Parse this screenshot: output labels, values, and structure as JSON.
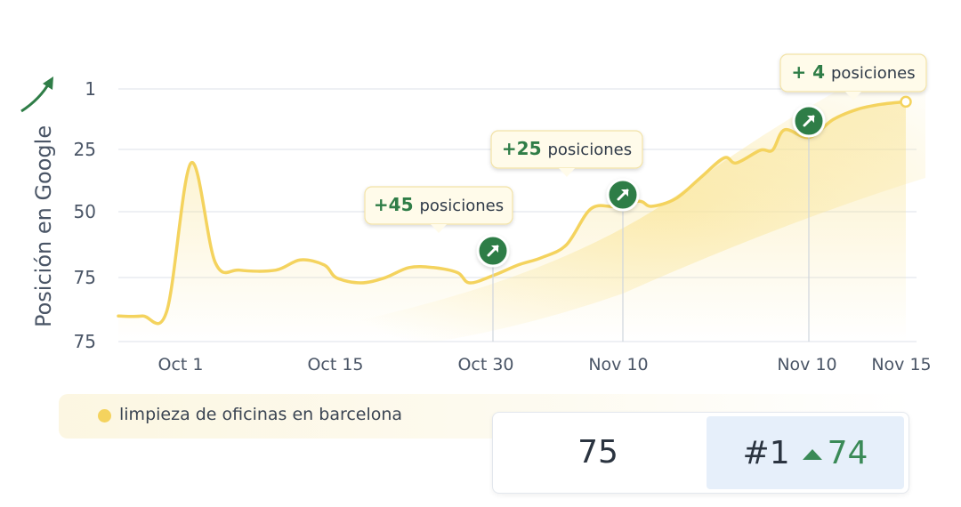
{
  "chart_data": {
    "type": "line",
    "ylabel": "Posición en Google",
    "yticks": [
      "1",
      "25",
      "50",
      "75",
      "75"
    ],
    "ylim": [
      1,
      100
    ],
    "y_inverted": true,
    "xticks": [
      "Oct 1",
      "Oct 15",
      "Oct 30",
      "Nov 10",
      "Nov 10",
      "Nov 15"
    ],
    "series": [
      {
        "name": "limpieza de oficinas en barcelona",
        "color": "#f4d35e",
        "points": [
          {
            "x": "Sep 25",
            "y": 90
          },
          {
            "x": "Sep 27",
            "y": 90
          },
          {
            "x": "Sep 29",
            "y": 88
          },
          {
            "x": "Oct 1",
            "y": 30
          },
          {
            "x": "Oct 3",
            "y": 69
          },
          {
            "x": "Oct 5",
            "y": 72
          },
          {
            "x": "Oct 8",
            "y": 72
          },
          {
            "x": "Oct 10",
            "y": 68
          },
          {
            "x": "Oct 12",
            "y": 70
          },
          {
            "x": "Oct 13",
            "y": 75
          },
          {
            "x": "Oct 15",
            "y": 77
          },
          {
            "x": "Oct 17",
            "y": 75
          },
          {
            "x": "Oct 19",
            "y": 71
          },
          {
            "x": "Oct 21",
            "y": 71
          },
          {
            "x": "Oct 23",
            "y": 73
          },
          {
            "x": "Oct 24",
            "y": 77
          },
          {
            "x": "Oct 26",
            "y": 74
          },
          {
            "x": "Oct 28",
            "y": 70
          },
          {
            "x": "Oct 30",
            "y": 67
          },
          {
            "x": "Nov 1",
            "y": 62
          },
          {
            "x": "Nov 3",
            "y": 48
          },
          {
            "x": "Nov 5",
            "y": 47
          },
          {
            "x": "Nov 7",
            "y": 45
          },
          {
            "x": "Nov 8",
            "y": 47
          },
          {
            "x": "Nov 10",
            "y": 44
          },
          {
            "x": "Nov 12",
            "y": 36
          },
          {
            "x": "Nov 14",
            "y": 28
          },
          {
            "x": "Nov 15",
            "y": 30
          },
          {
            "x": "Nov 17",
            "y": 25
          },
          {
            "x": "Nov 18",
            "y": 25
          },
          {
            "x": "Nov 19",
            "y": 17
          },
          {
            "x": "Nov 21",
            "y": 20
          },
          {
            "x": "Nov 23",
            "y": 13
          },
          {
            "x": "Nov 25",
            "y": 9
          },
          {
            "x": "Nov 27",
            "y": 7
          },
          {
            "x": "Nov 29",
            "y": 6
          }
        ]
      }
    ],
    "annotations": [
      {
        "num": "+45",
        "text": "posiciones"
      },
      {
        "num": "+25",
        "text": "posiciones"
      },
      {
        "num": "+ 4",
        "text": "posiciones"
      }
    ],
    "grid": true
  },
  "legend": {
    "label": "limpieza de oficinas en barcelona"
  },
  "stats": {
    "before": "75",
    "after": "#1",
    "delta": "74"
  },
  "colors": {
    "line": "#f4d35e",
    "marker": "#2f7d47",
    "accent": "#3a8a57"
  }
}
